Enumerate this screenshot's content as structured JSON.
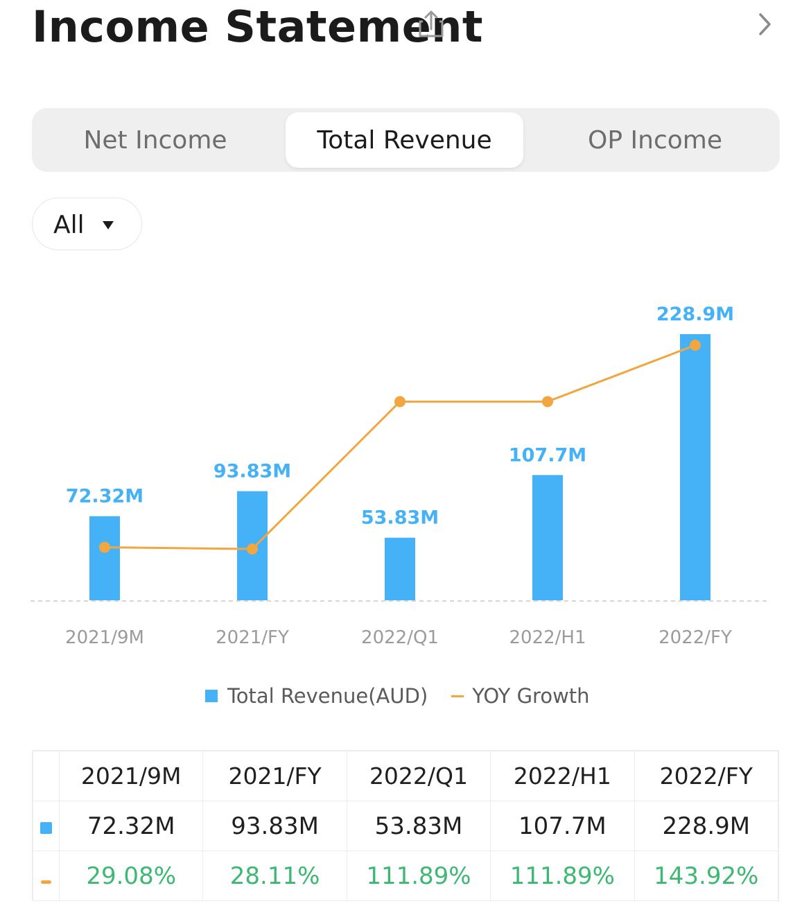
{
  "header": {
    "title": "Income Statement"
  },
  "tabs": [
    {
      "label": "Net Income",
      "active": false
    },
    {
      "label": "Total Revenue",
      "active": true
    },
    {
      "label": "OP Income",
      "active": false
    }
  ],
  "filter": {
    "selected": "All"
  },
  "colors": {
    "bar": "#45b1f6",
    "line": "#f2a640",
    "positive": "#3db873"
  },
  "chart_data": {
    "type": "bar",
    "categories": [
      "2021/9M",
      "2021/FY",
      "2022/Q1",
      "2022/H1",
      "2022/FY"
    ],
    "series": [
      {
        "name": "Total Revenue(AUD)",
        "type": "bar",
        "values": [
          72.32,
          93.83,
          53.83,
          107.7,
          228.9
        ],
        "labels": [
          "72.32M",
          "93.83M",
          "53.83M",
          "107.7M",
          "228.9M"
        ]
      },
      {
        "name": "YOY Growth",
        "type": "line",
        "values": [
          29.08,
          28.11,
          111.89,
          111.89,
          143.92
        ]
      }
    ],
    "title": "",
    "xlabel": "",
    "ylabel": ""
  },
  "legend": {
    "bar_label": "Total Revenue(AUD)",
    "line_label": "YOY Growth"
  },
  "table": {
    "headers": [
      "2021/9M",
      "2021/FY",
      "2022/Q1",
      "2022/H1",
      "2022/FY"
    ],
    "revenue": [
      "72.32M",
      "93.83M",
      "53.83M",
      "107.7M",
      "228.9M"
    ],
    "growth": [
      "29.08%",
      "28.11%",
      "111.89%",
      "111.89%",
      "143.92%"
    ]
  }
}
